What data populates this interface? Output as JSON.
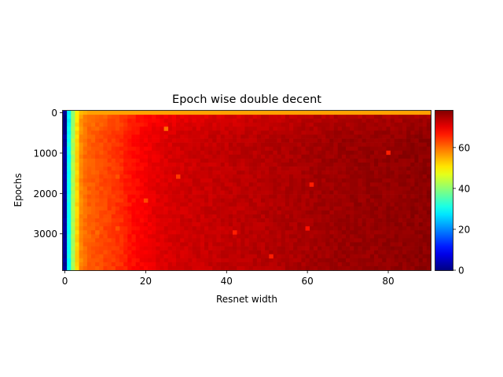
{
  "chart_data": {
    "type": "heatmap",
    "title": "Epoch wise double decent",
    "xlabel": "Resnet width",
    "ylabel": "Epochs",
    "colormap": "jet",
    "x_range": [
      0,
      91
    ],
    "y_range": [
      0,
      3950
    ],
    "y_inverted": true,
    "color_range": [
      0,
      78
    ],
    "x_ticks": [
      0,
      20,
      40,
      60,
      80
    ],
    "x_tick_labels": [
      "0",
      "20",
      "40",
      "60",
      "80"
    ],
    "y_ticks": [
      0,
      1000,
      2000,
      3000
    ],
    "y_tick_labels": [
      "0",
      "1000",
      "2000",
      "3000"
    ],
    "colorbar_ticks": [
      0,
      20,
      40,
      60
    ],
    "colorbar_tick_labels": [
      "0",
      "20",
      "40",
      "60"
    ],
    "grid": false,
    "legend": "none",
    "column_profile": {
      "width": [
        0,
        1,
        2,
        3,
        4,
        5,
        6,
        8,
        10,
        12,
        14,
        16,
        18,
        20,
        22,
        25,
        30,
        40,
        50,
        60,
        70,
        80,
        90
      ],
      "value_at_end": [
        2,
        30,
        42,
        52,
        58,
        60,
        61,
        62,
        63,
        64,
        65,
        67,
        68,
        69,
        70,
        71,
        72,
        73,
        74,
        75,
        76,
        76.5,
        77
      ],
      "value_at_epoch_0": [
        2,
        28,
        40,
        50,
        54,
        55,
        56,
        56,
        56,
        56,
        56,
        56,
        56,
        56,
        56,
        56,
        56,
        56,
        56,
        56,
        56,
        56,
        56
      ]
    },
    "outlier_cells": [
      {
        "width": 13,
        "epoch": 1600,
        "value": 62
      },
      {
        "width": 8,
        "epoch": 3000,
        "value": 60
      },
      {
        "width": 13,
        "epoch": 2900,
        "value": 62
      },
      {
        "width": 25,
        "epoch": 350,
        "value": 60
      },
      {
        "width": 28,
        "epoch": 1600,
        "value": 64
      },
      {
        "width": 20,
        "epoch": 2200,
        "value": 63
      },
      {
        "width": 42,
        "epoch": 3000,
        "value": 66
      },
      {
        "width": 51,
        "epoch": 3600,
        "value": 66
      },
      {
        "width": 61,
        "epoch": 1800,
        "value": 66
      },
      {
        "width": 80,
        "epoch": 950,
        "value": 66
      },
      {
        "width": 60,
        "epoch": 2900,
        "value": 67
      }
    ]
  }
}
